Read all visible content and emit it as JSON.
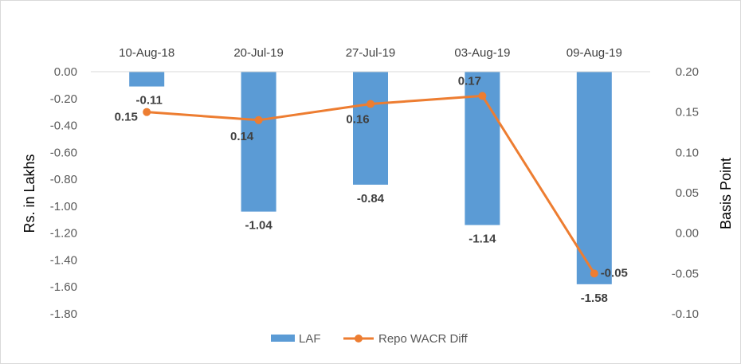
{
  "chart_data": {
    "type": "bar+line",
    "categories": [
      "10-Aug-18",
      "20-Jul-19",
      "27-Jul-19",
      "03-Aug-19",
      "09-Aug-19"
    ],
    "series": [
      {
        "name": "LAF",
        "type": "bar",
        "axis": "left",
        "color": "#5b9bd5",
        "values": [
          -0.11,
          -1.04,
          -0.84,
          -1.14,
          -1.58
        ],
        "labels": [
          "-0.11",
          "-1.04",
          "-0.84",
          "-1.14",
          "-1.58"
        ]
      },
      {
        "name": "Repo WACR Diff",
        "type": "line",
        "axis": "right",
        "color": "#ed7d31",
        "values": [
          0.15,
          0.14,
          0.16,
          0.17,
          -0.05
        ],
        "labels": [
          "0.15",
          "0.14",
          "0.16",
          "0.17",
          "-0.05"
        ]
      }
    ],
    "ylabel": "Rs. in Lakhs",
    "ylim": [
      -1.8,
      0.0
    ],
    "yticks": [
      "0.00",
      "-0.20",
      "-0.40",
      "-0.60",
      "-0.80",
      "-1.00",
      "-1.20",
      "-1.40",
      "-1.60",
      "-1.80"
    ],
    "y2label": "Basis Point",
    "y2lim": [
      -0.1,
      0.2
    ],
    "y2ticks": [
      "0.20",
      "0.15",
      "0.10",
      "0.05",
      "0.00",
      "-0.05",
      "-0.10"
    ],
    "grid": false,
    "legend": "bottom-center",
    "category_axis_position": "top"
  }
}
